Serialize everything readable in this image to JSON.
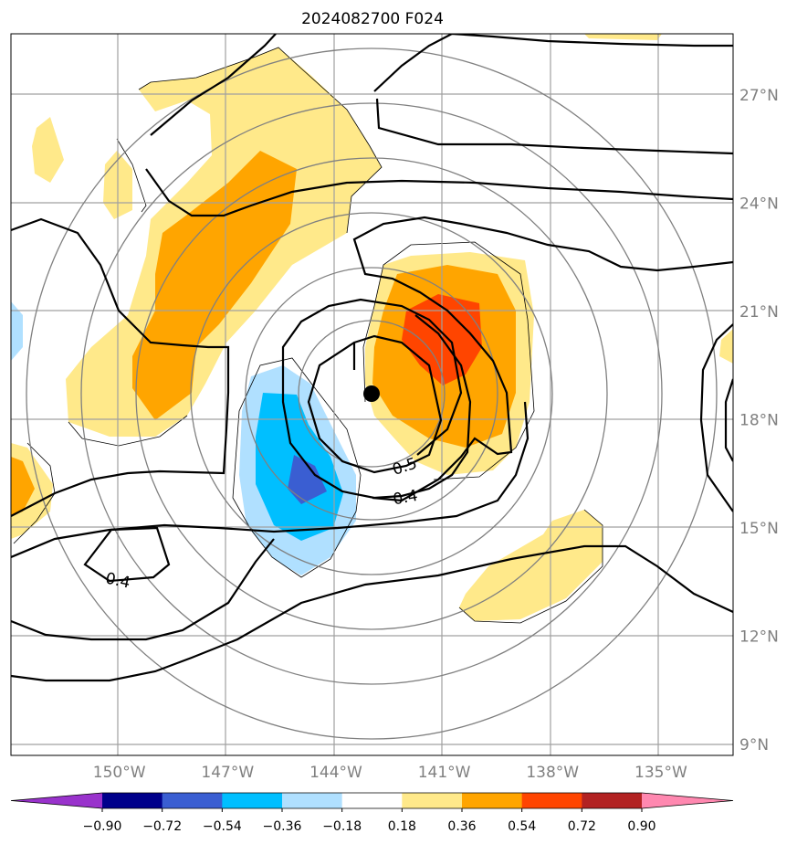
{
  "chart_data": {
    "type": "map-contour",
    "title": "2024082700 F024",
    "lon_ticks": [
      -150,
      -147,
      -144,
      -141,
      -138,
      -135
    ],
    "lon_tick_labels": [
      "150°W",
      "147°W",
      "144°W",
      "141°W",
      "138°W",
      "135°W"
    ],
    "lat_ticks": [
      9,
      12,
      15,
      18,
      21,
      24,
      27
    ],
    "lat_tick_labels": [
      "9°N",
      "12°N",
      "15°N",
      "18°N",
      "21°N",
      "24°N",
      "27°N"
    ],
    "lon_range": [
      -153,
      -133
    ],
    "lat_range": [
      8.7,
      28.7
    ],
    "grid": true,
    "storm_center": {
      "lon": -142.5,
      "lat": 18.7
    },
    "range_rings": {
      "center": {
        "lon": -142.5,
        "lat": 18.7
      },
      "radii_deg": [
        2,
        3.5,
        5,
        6.5,
        8,
        9.5
      ]
    },
    "contour_labels": [
      {
        "text": "0.5",
        "lon": -141.9,
        "lat": 16.9
      },
      {
        "text": "0.4",
        "lon": -141.9,
        "lat": 15.9
      },
      {
        "text": "0.4",
        "lon": -150.0,
        "lat": 13.7
      }
    ],
    "colorbar": {
      "ticks": [
        -0.9,
        -0.72,
        -0.54,
        -0.36,
        -0.18,
        0.18,
        0.36,
        0.54,
        0.72,
        0.9
      ],
      "tick_labels": [
        "−0.90",
        "−0.72",
        "−0.54",
        "−0.36",
        "−0.18",
        "0.18",
        "0.36",
        "0.54",
        "0.72",
        "0.90"
      ],
      "colors": [
        "#9932cc",
        "#00008b",
        "#3a5ed2",
        "#00bfff",
        "#b0e0ff",
        "#ffffff",
        "#ffe98a",
        "#ffa500",
        "#ff4500",
        "#b22222",
        "#ff88b0"
      ],
      "extend": "both"
    }
  }
}
